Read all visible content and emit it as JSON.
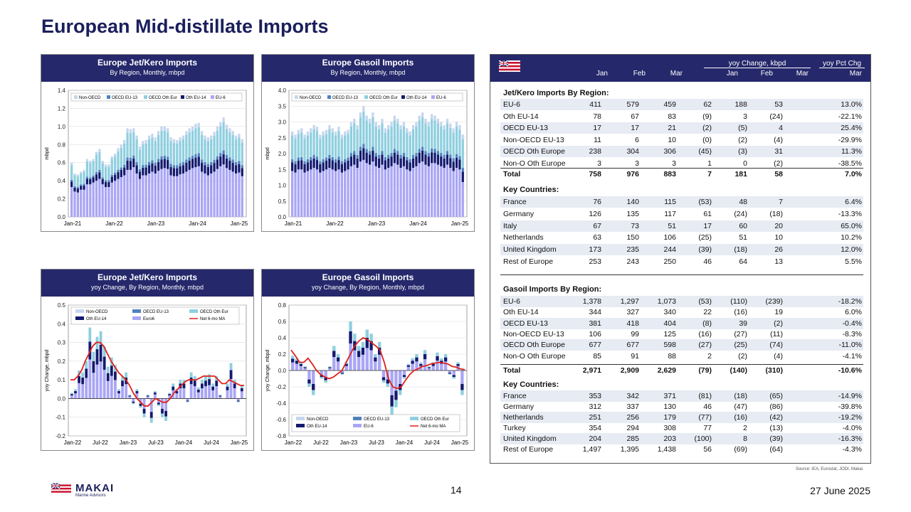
{
  "page": {
    "title": "European Mid-distillate Imports",
    "page_number": "14",
    "date": "27 June 2025",
    "source": "Source: IEA, Eurostat, JODI, Makai",
    "logo_name": "MAKAI",
    "logo_sub": "Marine Advisors"
  },
  "charts": {
    "jet_monthly": {
      "title": "Europe Jet/Kero Imports",
      "subtitle": "By Region, Monthly, mbpd"
    },
    "gasoil_monthly": {
      "title": "Europe Gasoil Imports",
      "subtitle": "By Region, Monthly, mbpd"
    },
    "jet_yoy": {
      "title": "Europe Jet/Kero Imports",
      "subtitle": "yoy Change, By Region, Monthly, mbpd"
    },
    "gasoil_yoy": {
      "title": "Europe Gasoil Imports",
      "subtitle": "yoy Change, By Region, Monthly, mbpd"
    }
  },
  "chart_data": [
    {
      "type": "bar",
      "stacked": true,
      "title": "Europe Jet/Kero Imports",
      "subtitle": "By Region, Monthly, mbpd",
      "ylabel": "mbpd",
      "ylim": [
        0,
        1.4
      ],
      "yticks": [
        "0.0",
        "0.2",
        "0.4",
        "0.6",
        "0.8",
        "1.0",
        "1.2",
        "1.4"
      ],
      "xticks": [
        "Jan-21",
        "Jan-22",
        "Jan-23",
        "Jan-24",
        "Jan-25"
      ],
      "legend": [
        "Non-OECD",
        "OECD EU-13",
        "OECD Oth Eur",
        "Oth EU-14",
        "EU-6"
      ],
      "colors": [
        "#c5d6ee",
        "#4f81bd",
        "#8fcfdf",
        "#141a6e",
        "#a9a6f5"
      ],
      "series_totals": [
        0.6,
        0.48,
        0.47,
        0.5,
        0.52,
        0.64,
        0.62,
        0.64,
        0.72,
        0.75,
        0.62,
        0.58,
        0.58,
        0.67,
        0.7,
        0.76,
        0.8,
        0.85,
        0.98,
        0.97,
        0.98,
        0.9,
        0.78,
        0.84,
        0.85,
        0.9,
        0.92,
        0.88,
        0.95,
        1.0,
        1.0,
        0.98,
        0.88,
        0.86,
        0.85,
        0.88,
        0.9,
        0.95,
        0.98,
        1.0,
        1.03,
        1.04,
        0.95,
        0.9,
        0.88,
        0.9,
        0.94,
        1.0,
        1.05,
        1.1,
        1.02,
        0.98,
        0.95,
        0.9,
        0.92,
        0.86
      ],
      "eu6": [
        0.33,
        0.28,
        0.27,
        0.3,
        0.3,
        0.36,
        0.36,
        0.38,
        0.4,
        0.42,
        0.36,
        0.33,
        0.33,
        0.38,
        0.4,
        0.42,
        0.44,
        0.46,
        0.52,
        0.52,
        0.55,
        0.48,
        0.42,
        0.46,
        0.46,
        0.48,
        0.5,
        0.48,
        0.51,
        0.53,
        0.54,
        0.53,
        0.46,
        0.45,
        0.45,
        0.47,
        0.48,
        0.5,
        0.52,
        0.54,
        0.55,
        0.56,
        0.5,
        0.48,
        0.46,
        0.48,
        0.5,
        0.53,
        0.56,
        0.58,
        0.54,
        0.52,
        0.5,
        0.48,
        0.49,
        0.45
      ]
    },
    {
      "type": "bar",
      "stacked": true,
      "title": "Europe Gasoil Imports",
      "subtitle": "By Region, Monthly, mbpd",
      "ylabel": "mbpd",
      "ylim": [
        0,
        4.0
      ],
      "yticks": [
        "0.0",
        "0.5",
        "1.0",
        "1.5",
        "2.0",
        "2.5",
        "3.0",
        "3.5",
        "4.0"
      ],
      "xticks": [
        "Jan-21",
        "Jan-22",
        "Jan-23",
        "Jan-24",
        "Jan-25"
      ],
      "legend": [
        "Non-OECD",
        "OECD EU-13",
        "OECD Oth Eur",
        "Oth EU-14",
        "EU-6"
      ],
      "colors": [
        "#c5d6ee",
        "#4f81bd",
        "#8fcfdf",
        "#141a6e",
        "#a9a6f5"
      ],
      "series_totals": [
        2.7,
        2.6,
        2.75,
        2.8,
        2.6,
        2.7,
        2.8,
        2.9,
        2.85,
        2.6,
        2.7,
        2.75,
        2.9,
        2.8,
        2.7,
        2.85,
        2.6,
        2.7,
        2.75,
        3.0,
        3.1,
        2.9,
        3.3,
        3.5,
        3.2,
        3.1,
        3.3,
        3.0,
        2.9,
        3.1,
        2.8,
        2.9,
        3.0,
        3.2,
        3.1,
        2.9,
        3.0,
        2.8,
        2.7,
        2.9,
        3.0,
        3.2,
        3.3,
        3.1,
        3.0,
        3.25,
        3.2,
        3.1,
        3.0,
        2.9,
        3.1,
        2.95,
        2.8,
        3.0,
        2.9,
        2.6
      ],
      "eu6": [
        1.45,
        1.4,
        1.5,
        1.5,
        1.4,
        1.45,
        1.5,
        1.55,
        1.5,
        1.4,
        1.45,
        1.5,
        1.55,
        1.5,
        1.45,
        1.5,
        1.4,
        1.45,
        1.5,
        1.6,
        1.65,
        1.55,
        1.75,
        1.8,
        1.7,
        1.65,
        1.75,
        1.6,
        1.55,
        1.65,
        1.5,
        1.55,
        1.6,
        1.7,
        1.65,
        1.55,
        1.6,
        1.5,
        1.45,
        1.55,
        1.6,
        1.7,
        1.75,
        1.65,
        1.6,
        1.7,
        1.7,
        1.65,
        1.6,
        1.55,
        1.65,
        1.55,
        1.45,
        1.55,
        1.5,
        1.1
      ]
    },
    {
      "type": "bar+line",
      "stacked": true,
      "title": "Europe Jet/Kero Imports",
      "subtitle": "yoy Change, By Region, Monthly, mbpd",
      "ylabel": "yoy Change, mbpd",
      "ylim": [
        -0.2,
        0.5
      ],
      "yticks": [
        "-0.2",
        "-0.1",
        "0.0",
        "0.1",
        "0.2",
        "0.3",
        "0.4",
        "0.5"
      ],
      "xticks": [
        "Jan-22",
        "Jul-22",
        "Jan-23",
        "Jul-23",
        "Jan-24",
        "Jul-24",
        "Jan-25"
      ],
      "legend": [
        "Non-OECD",
        "OECD EU-13",
        "OECD Oth Eur",
        "Oth EU-14",
        "Euro6",
        "Net 6-mo MA"
      ],
      "colors": [
        "#c5d6ee",
        "#4f81bd",
        "#8fcfdf",
        "#141a6e",
        "#a9a6f5",
        "#e0201b"
      ],
      "yoy_totals": [
        0.03,
        0.05,
        0.15,
        0.14,
        0.2,
        0.38,
        0.25,
        0.33,
        0.36,
        0.28,
        0.17,
        0.22,
        0.18,
        0.05,
        0.12,
        0.14,
        0.02,
        -0.03,
        0.05,
        -0.05,
        -0.1,
        0.02,
        -0.13,
        0.04,
        -0.04,
        -0.1,
        -0.12,
        0.03,
        0.08,
        0.05,
        0.1,
        0.1,
        -0.02,
        0.14,
        0.12,
        0.06,
        0.1,
        0.12,
        0.13,
        0.08,
        0.12,
        0.02,
        0.0,
        0.08,
        0.19,
        0.1,
        -0.02,
        0.07
      ],
      "ma": [
        0.1,
        0.1,
        0.12,
        0.15,
        0.2,
        0.24,
        0.28,
        0.3,
        0.3,
        0.28,
        0.24,
        0.2,
        0.17,
        0.14,
        0.12,
        0.1,
        0.07,
        0.03,
        0.0,
        -0.02,
        -0.04,
        -0.04,
        -0.02,
        0.0,
        -0.01,
        -0.02,
        -0.02,
        0.0,
        0.03,
        0.05,
        0.07,
        0.09,
        0.1,
        0.1,
        0.1,
        0.11,
        0.12,
        0.12,
        0.12,
        0.12,
        0.1,
        0.08,
        0.08,
        0.1,
        0.09,
        0.08,
        0.07,
        0.07
      ]
    },
    {
      "type": "bar+line",
      "stacked": true,
      "title": "Europe Gasoil Imports",
      "subtitle": "yoy Change, By Region, Monthly, mbpd",
      "ylabel": "yoy Change, mbpd",
      "ylim": [
        -0.8,
        0.8
      ],
      "yticks": [
        "-0.8",
        "-0.6",
        "-0.4",
        "-0.2",
        "0.0",
        "0.2",
        "0.4",
        "0.6",
        "0.8"
      ],
      "xticks": [
        "Jan-22",
        "Jul-22",
        "Jan-23",
        "Jul-23",
        "Jan-24",
        "Jul-24",
        "Jan-25"
      ],
      "legend": [
        "Non-OECD",
        "OECD EU-13",
        "OECD Oth Eur",
        "Oth EU-14",
        "EU-6",
        "Net 6-mo MA"
      ],
      "colors": [
        "#c5d6ee",
        "#4f81bd",
        "#8fcfdf",
        "#141a6e",
        "#a9a6f5",
        "#e0201b"
      ],
      "yoy_totals": [
        0.18,
        0.15,
        0.1,
        0.05,
        -0.2,
        -0.3,
        0.0,
        -0.1,
        -0.15,
        0.05,
        0.3,
        0.2,
        -0.05,
        0.1,
        0.6,
        0.45,
        0.3,
        0.35,
        0.5,
        0.45,
        0.2,
        0.35,
        -0.15,
        -0.2,
        -0.55,
        -0.45,
        -0.3,
        -0.1,
        0.08,
        0.15,
        0.2,
        0.1,
        0.25,
        0.05,
        0.1,
        0.22,
        0.15,
        0.2,
        -0.05,
        -0.1,
        0.1,
        -0.3
      ],
      "ma": [
        0.25,
        0.18,
        0.1,
        0.1,
        0.15,
        0.08,
        0.0,
        -0.05,
        -0.08,
        -0.1,
        -0.08,
        -0.04,
        0.0,
        0.1,
        0.2,
        0.3,
        0.36,
        0.4,
        0.38,
        0.34,
        0.3,
        0.25,
        0.1,
        -0.1,
        -0.2,
        -0.22,
        -0.2,
        -0.12,
        -0.05,
        0.0,
        0.02,
        0.05,
        0.06,
        0.08,
        0.09,
        0.1,
        0.09,
        0.08,
        0.05,
        0.04,
        0.02,
        0.01
      ]
    }
  ],
  "table": {
    "header": {
      "jan": "Jan",
      "feb": "Feb",
      "mar": "Mar",
      "yoy_group": "yoy Change, kbpd",
      "yoy_jan": "Jan",
      "yoy_feb": "Feb",
      "yoy_mar": "Mar",
      "pct_group": "yoy Pct Chg",
      "pct_mar": "Mar"
    },
    "jet_title": "Jet/Kero Imports By Region:",
    "jet_regions": [
      [
        "EU-6",
        "411",
        "579",
        "459",
        "62",
        "188",
        "53",
        "13.0%"
      ],
      [
        "Oth EU-14",
        "78",
        "67",
        "83",
        "(9)",
        "3",
        "(24)",
        "-22.1%"
      ],
      [
        "OECD EU-13",
        "17",
        "17",
        "21",
        "(2)",
        "(5)",
        "4",
        "25.4%"
      ],
      [
        "Non-OECD EU-13",
        "11",
        "6",
        "10",
        "(0)",
        "(2)",
        "(4)",
        "-29.9%"
      ],
      [
        "OECD Oth Europe",
        "238",
        "304",
        "306",
        "(45)",
        "(3)",
        "31",
        "11.3%"
      ],
      [
        "Non-O Oth Europe",
        "3",
        "3",
        "3",
        "1",
        "0",
        "(2)",
        "-38.5%"
      ]
    ],
    "jet_total": [
      "Total",
      "758",
      "976",
      "883",
      "7",
      "181",
      "58",
      "7.0%"
    ],
    "jet_countries_title": "Key Countries:",
    "jet_countries": [
      [
        "France",
        "76",
        "140",
        "115",
        "(53)",
        "48",
        "7",
        "6.4%"
      ],
      [
        "Germany",
        "126",
        "135",
        "117",
        "61",
        "(24)",
        "(18)",
        "-13.3%"
      ],
      [
        "Italy",
        "67",
        "73",
        "51",
        "17",
        "60",
        "20",
        "65.0%"
      ],
      [
        "Netherlands",
        "63",
        "150",
        "106",
        "(25)",
        "51",
        "10",
        "10.2%"
      ],
      [
        "United Kingdom",
        "173",
        "235",
        "244",
        "(39)",
        "(18)",
        "26",
        "12.0%"
      ],
      [
        "Rest of Europe",
        "253",
        "243",
        "250",
        "46",
        "64",
        "13",
        "5.5%"
      ]
    ],
    "gas_title": "Gasoil Imports By Region:",
    "gas_regions": [
      [
        "EU-6",
        "1,378",
        "1,297",
        "1,073",
        "(53)",
        "(110)",
        "(239)",
        "-18.2%"
      ],
      [
        "Oth EU-14",
        "344",
        "327",
        "340",
        "22",
        "(16)",
        "19",
        "6.0%"
      ],
      [
        "OECD EU-13",
        "381",
        "418",
        "404",
        "(8)",
        "39",
        "(2)",
        "-0.4%"
      ],
      [
        "Non-OECD EU-13",
        "106",
        "99",
        "125",
        "(16)",
        "(27)",
        "(11)",
        "-8.3%"
      ],
      [
        "OECD Oth Europe",
        "677",
        "677",
        "598",
        "(27)",
        "(25)",
        "(74)",
        "-11.0%"
      ],
      [
        "Non-O Oth Europe",
        "85",
        "91",
        "88",
        "2",
        "(2)",
        "(4)",
        "-4.1%"
      ]
    ],
    "gas_total": [
      "Total",
      "2,971",
      "2,909",
      "2,629",
      "(79)",
      "(140)",
      "(310)",
      "-10.6%"
    ],
    "gas_countries_title": "Key Countries:",
    "gas_countries": [
      [
        "France",
        "353",
        "342",
        "371",
        "(81)",
        "(18)",
        "(65)",
        "-14.9%"
      ],
      [
        "Germany",
        "312",
        "337",
        "130",
        "46",
        "(47)",
        "(86)",
        "-39.8%"
      ],
      [
        "Netherlands",
        "251",
        "256",
        "179",
        "(77)",
        "(16)",
        "(42)",
        "-19.2%"
      ],
      [
        "Turkey",
        "354",
        "294",
        "308",
        "77",
        "2",
        "(13)",
        "-4.0%"
      ],
      [
        "United Kingdom",
        "204",
        "285",
        "203",
        "(100)",
        "8",
        "(39)",
        "-16.3%"
      ],
      [
        "Rest of Europe",
        "1,497",
        "1,395",
        "1,438",
        "56",
        "(69)",
        "(64)",
        "-4.3%"
      ]
    ]
  }
}
